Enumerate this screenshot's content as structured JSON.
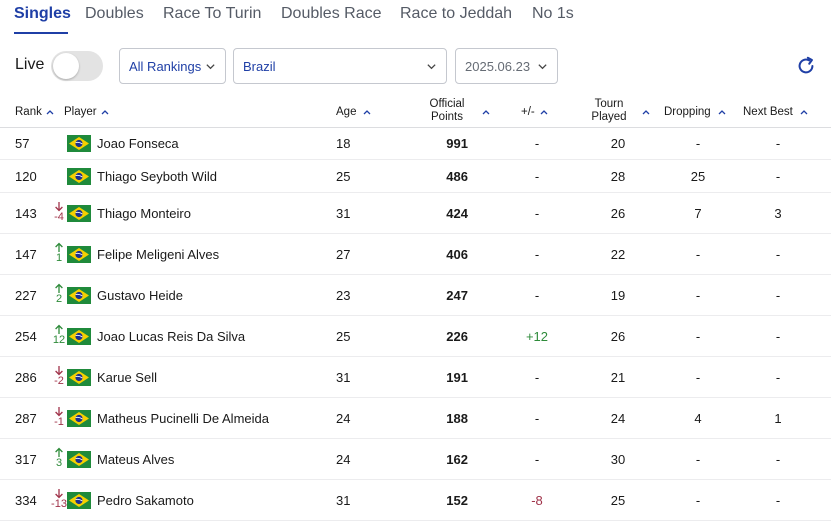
{
  "tabs": [
    {
      "label": "Singles",
      "active": true
    },
    {
      "label": "Doubles",
      "active": false
    },
    {
      "label": "Race To Turin",
      "active": false
    },
    {
      "label": "Doubles Race",
      "active": false
    },
    {
      "label": "Race to Jeddah",
      "active": false
    },
    {
      "label": "No 1s",
      "active": false
    }
  ],
  "controls": {
    "live_label": "Live",
    "live_on": false,
    "ranking_type": "All Rankings",
    "country": "Brazil",
    "date": "2025.06.23",
    "refresh_icon": "refresh-icon"
  },
  "table": {
    "headers": {
      "rank": "Rank",
      "player": "Player",
      "age": "Age",
      "points_line1": "Official",
      "points_line2": "Points",
      "plus_minus": "+/-",
      "played_line1": "Tourn",
      "played_line2": "Played",
      "dropping": "Dropping",
      "next_best": "Next Best"
    },
    "colors": {
      "accent": "#1f3fa6",
      "up": "#2e8b3a",
      "down": "#a0334a"
    },
    "rows": [
      {
        "rank": "57",
        "move": "",
        "dir": "",
        "name": "Joao Fonseca",
        "age": "18",
        "points": "991",
        "plus_minus": "-",
        "plus_minus_dir": "",
        "played": "20",
        "dropping": "-",
        "next_best": "-"
      },
      {
        "rank": "120",
        "move": "",
        "dir": "",
        "name": "Thiago Seyboth Wild",
        "age": "25",
        "points": "486",
        "plus_minus": "-",
        "plus_minus_dir": "",
        "played": "28",
        "dropping": "25",
        "next_best": "-"
      },
      {
        "rank": "143",
        "move": "-4",
        "dir": "down",
        "name": "Thiago Monteiro",
        "age": "31",
        "points": "424",
        "plus_minus": "-",
        "plus_minus_dir": "",
        "played": "26",
        "dropping": "7",
        "next_best": "3"
      },
      {
        "rank": "147",
        "move": "1",
        "dir": "up",
        "name": "Felipe Meligeni Alves",
        "age": "27",
        "points": "406",
        "plus_minus": "-",
        "plus_minus_dir": "",
        "played": "22",
        "dropping": "-",
        "next_best": "-"
      },
      {
        "rank": "227",
        "move": "2",
        "dir": "up",
        "name": "Gustavo Heide",
        "age": "23",
        "points": "247",
        "plus_minus": "-",
        "plus_minus_dir": "",
        "played": "19",
        "dropping": "-",
        "next_best": "-"
      },
      {
        "rank": "254",
        "move": "12",
        "dir": "up",
        "name": "Joao Lucas Reis Da Silva",
        "age": "25",
        "points": "226",
        "plus_minus": "+12",
        "plus_minus_dir": "up",
        "played": "26",
        "dropping": "-",
        "next_best": "-"
      },
      {
        "rank": "286",
        "move": "-2",
        "dir": "down",
        "name": "Karue Sell",
        "age": "31",
        "points": "191",
        "plus_minus": "-",
        "plus_minus_dir": "",
        "played": "21",
        "dropping": "-",
        "next_best": "-"
      },
      {
        "rank": "287",
        "move": "-1",
        "dir": "down",
        "name": "Matheus Pucinelli De Almeida",
        "age": "24",
        "points": "188",
        "plus_minus": "-",
        "plus_minus_dir": "",
        "played": "24",
        "dropping": "4",
        "next_best": "1"
      },
      {
        "rank": "317",
        "move": "3",
        "dir": "up",
        "name": "Mateus Alves",
        "age": "24",
        "points": "162",
        "plus_minus": "-",
        "plus_minus_dir": "",
        "played": "30",
        "dropping": "-",
        "next_best": "-"
      },
      {
        "rank": "334",
        "move": "-13",
        "dir": "down",
        "name": "Pedro Sakamoto",
        "age": "31",
        "points": "152",
        "plus_minus": "-8",
        "plus_minus_dir": "down",
        "played": "25",
        "dropping": "-",
        "next_best": "-"
      }
    ]
  }
}
